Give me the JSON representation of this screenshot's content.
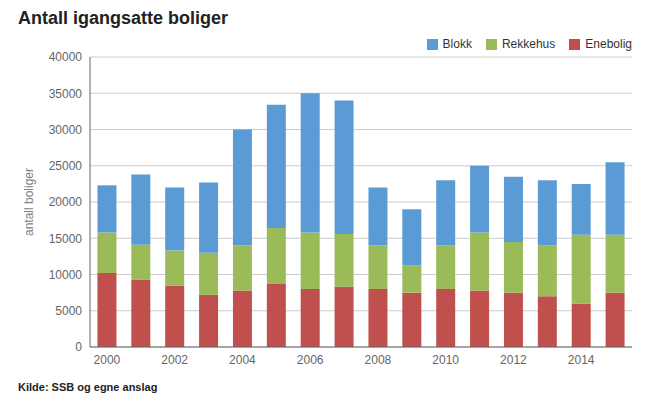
{
  "chart_data": {
    "type": "bar",
    "title": "Antall igangsatte boliger",
    "y_label": "antall boliger",
    "annotations": [
      "Kilde: SSB og egne anslag"
    ],
    "categories": [
      "2000",
      null,
      "2002",
      null,
      "2004",
      null,
      "2006",
      null,
      "2008",
      null,
      "2010",
      null,
      "2012",
      null,
      "2014",
      null
    ],
    "series": [
      {
        "name": "Enebolig",
        "color": "#C0504D",
        "values": [
          10200,
          9300,
          8500,
          7200,
          7800,
          8700,
          8000,
          8300,
          8000,
          7500,
          8000,
          7800,
          7500,
          7000,
          6000,
          7500
        ]
      },
      {
        "name": "Rekkehus",
        "color": "#9BBB59",
        "values": [
          5600,
          4800,
          4800,
          5800,
          6200,
          7700,
          7800,
          7300,
          6000,
          3800,
          6000,
          8000,
          7000,
          7000,
          9500,
          8000
        ]
      },
      {
        "name": "Blokk",
        "color": "#5B9BD5",
        "values": [
          6500,
          9700,
          8700,
          9700,
          16000,
          17000,
          19200,
          18400,
          8000,
          7700,
          9000,
          9200,
          9000,
          9000,
          7000,
          10000
        ]
      }
    ],
    "stacked": true,
    "ylim": [
      0,
      40000
    ],
    "yticks": [
      0,
      5000,
      10000,
      15000,
      20000,
      25000,
      30000,
      35000,
      40000
    ],
    "grid": true,
    "legend": "upper right"
  }
}
